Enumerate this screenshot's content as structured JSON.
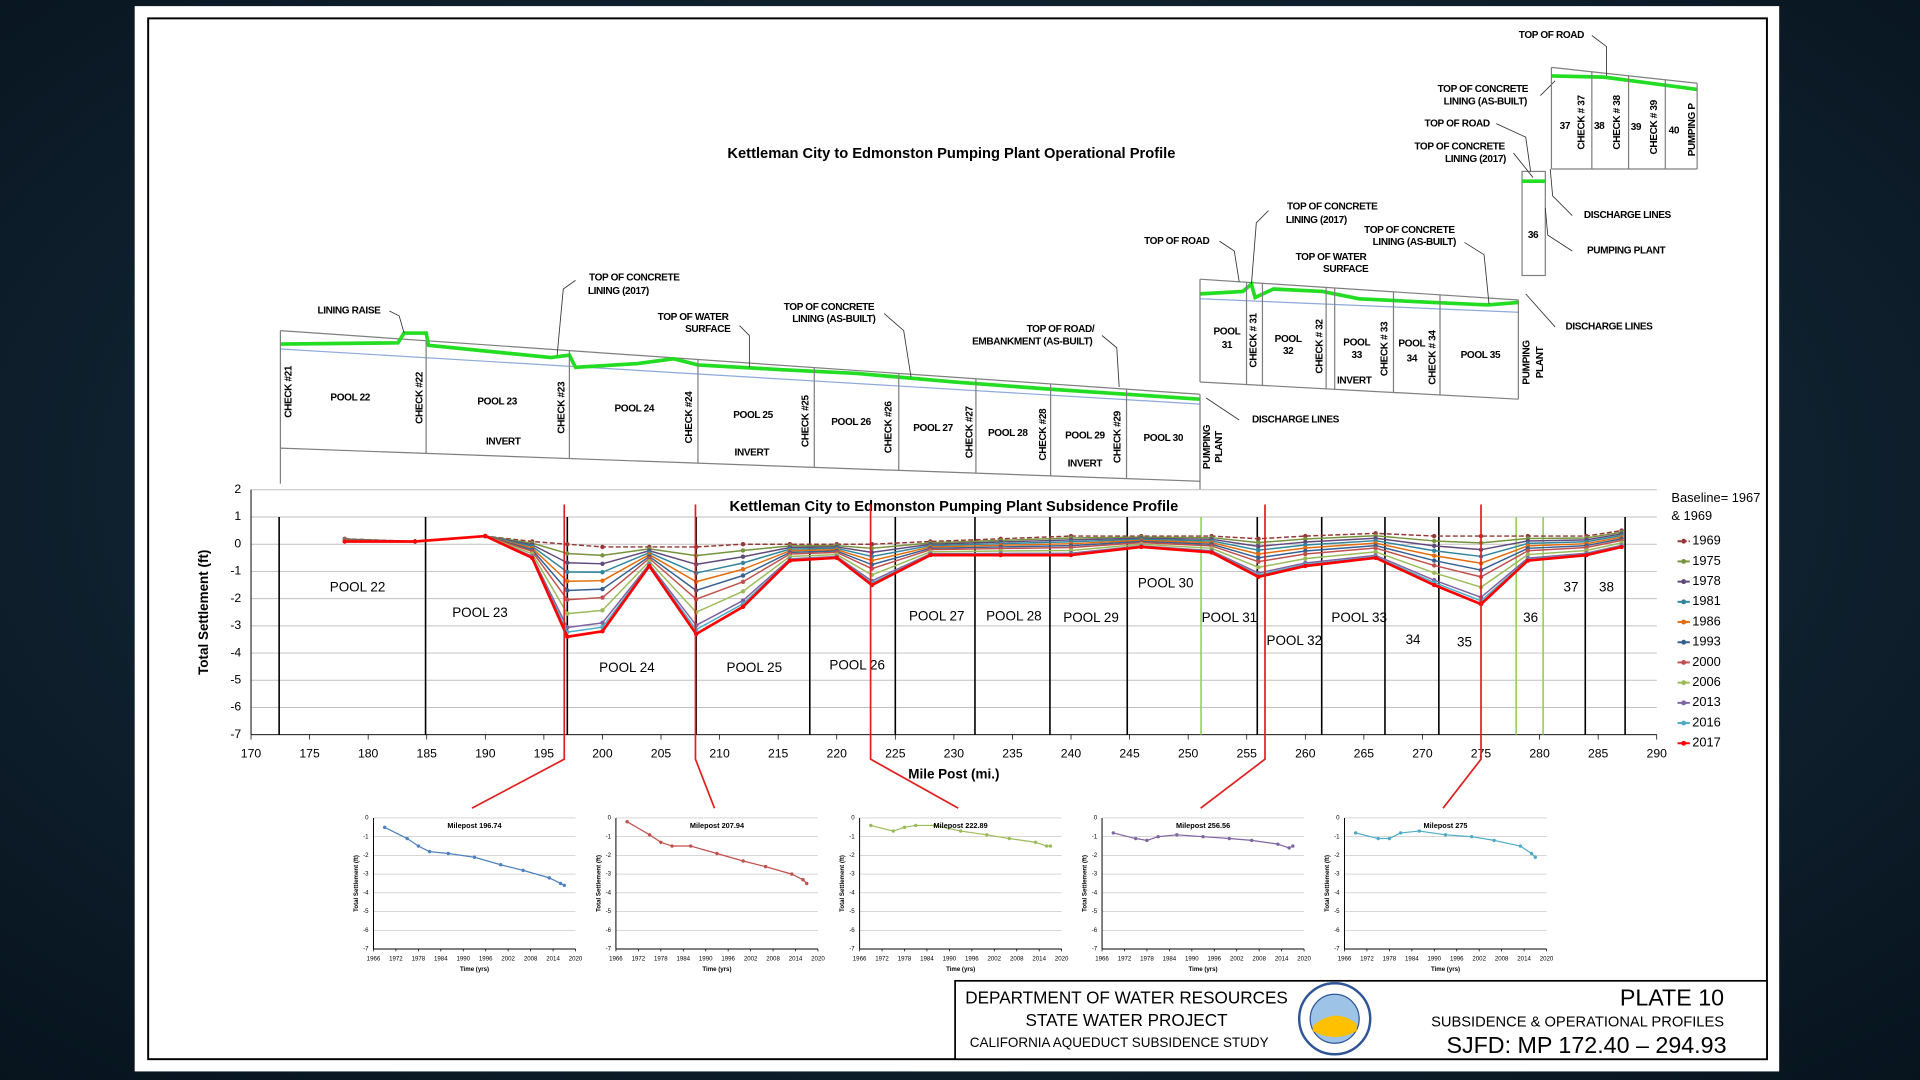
{
  "profile": {
    "title": "Kettleman City to Edmonston Pumping Plant Operational Profile",
    "labels": [
      "LINING RAISE",
      "TOP OF CONCRETE",
      "LINING (2017)",
      "TOP OF WATER",
      "SURFACE",
      "TOP OF CONCRETE",
      "LINING (AS-BUILT)",
      "TOP OF ROAD/",
      "EMBANKMENT (AS-BUILT)",
      "CHECK #21",
      "POOL 22",
      "CHECK #22",
      "POOL 23",
      "INVERT",
      "CHECK #23",
      "POOL 24",
      "CHECK #24",
      "POOL 25",
      "INVERT",
      "CHECK #25",
      "POOL 26",
      "CHECK #26",
      "POOL 27",
      "CHECK #27",
      "POOL 28",
      "CHECK #28",
      "POOL 29",
      "INVERT",
      "CHECK #29",
      "POOL 30",
      "PUMPING",
      "PLANT",
      "DISCHARGE LINES",
      "TOP OF ROAD",
      "TOP OF CONCRETE",
      "LINING (2017)",
      "TOP OF CONCRETE",
      "LINING (AS-BUILT)",
      "TOP OF WATER",
      "SURFACE",
      "POOL",
      "31",
      "CHECK # 31",
      "POOL",
      "32",
      "CHECK # 32",
      "POOL",
      "33",
      "INVERT",
      "CHECK # 33",
      "POOL",
      "34",
      "CHECK # 34",
      "POOL 35",
      "PUMPING",
      "PLANT",
      "DISCHARGE LINES",
      "36",
      "PUMPING PLANT",
      "DISCHARGE LINES",
      "TOP OF CONCRETE",
      "LINING (2017)",
      "TOP OF ROAD",
      "TOP OF CONCRETE",
      "LINING (AS-BUILT)",
      "TOP OF ROAD",
      "37",
      "CHECK # 37",
      "38",
      "CHECK # 38",
      "39",
      "CHECK # 39",
      "40",
      "PUMPING P"
    ]
  },
  "chart_data": [
    {
      "type": "line",
      "title": "Kettleman City to Edmonston Pumping Plant Subsidence Profile",
      "y_label": "Total Settlement (ft)",
      "x_label": "Mile Post (mi.)",
      "legend_title": [
        "Baseline= 1967",
        "& 1969"
      ],
      "legend": "right",
      "grid": true,
      "xlim": [
        170,
        290
      ],
      "xticks": [
        170,
        175,
        180,
        185,
        190,
        195,
        200,
        205,
        210,
        215,
        220,
        225,
        230,
        235,
        240,
        245,
        250,
        255,
        260,
        265,
        270,
        275,
        280,
        285,
        290
      ],
      "ylim": [
        -7,
        2
      ],
      "yticks": [
        2,
        1,
        0,
        -1,
        -2,
        -3,
        -4,
        -5,
        -6,
        -7
      ],
      "x": [
        178,
        184,
        190,
        194,
        197,
        200,
        204,
        208,
        212,
        216,
        220,
        223,
        228,
        234,
        240,
        246,
        252,
        256,
        260,
        266,
        271,
        275,
        279,
        284,
        287
      ],
      "series": [
        {
          "name": "1969",
          "color": "#953735",
          "dash": true,
          "values": [
            0.2,
            0.1,
            0.3,
            0.1,
            0.0,
            -0.1,
            -0.1,
            -0.1,
            0.0,
            0.0,
            0.0,
            0.0,
            0.1,
            0.2,
            0.3,
            0.3,
            0.3,
            0.2,
            0.3,
            0.4,
            0.3,
            0.3,
            0.3,
            0.3,
            0.5
          ]
        },
        {
          "name": "1975",
          "color": "#77933c",
          "values": [
            0.19,
            0.1,
            0.3,
            0.04,
            -0.34,
            -0.41,
            -0.17,
            -0.42,
            -0.23,
            -0.06,
            -0.05,
            -0.15,
            0.05,
            0.14,
            0.23,
            0.26,
            0.24,
            0.06,
            0.19,
            0.31,
            0.12,
            0.05,
            0.21,
            0.23,
            0.44
          ]
        },
        {
          "name": "1978",
          "color": "#604a7b",
          "values": [
            0.18,
            0.1,
            0.3,
            -0.02,
            -0.68,
            -0.72,
            -0.24,
            -0.74,
            -0.46,
            -0.12,
            -0.1,
            -0.3,
            0.0,
            0.08,
            0.16,
            0.22,
            0.18,
            -0.08,
            0.08,
            0.22,
            -0.06,
            -0.2,
            0.12,
            0.16,
            0.38
          ]
        },
        {
          "name": "1981",
          "color": "#31859c",
          "values": [
            0.17,
            0.1,
            0.3,
            -0.08,
            -1.02,
            -1.03,
            -0.31,
            -1.06,
            -0.69,
            -0.18,
            -0.15,
            -0.45,
            -0.05,
            0.02,
            0.09,
            0.18,
            0.12,
            -0.22,
            -0.03,
            0.13,
            -0.24,
            -0.45,
            0.03,
            0.09,
            0.32
          ]
        },
        {
          "name": "1986",
          "color": "#e46c0a",
          "values": [
            0.16,
            0.1,
            0.3,
            -0.14,
            -1.36,
            -1.34,
            -0.38,
            -1.38,
            -0.92,
            -0.24,
            -0.2,
            -0.6,
            -0.1,
            -0.04,
            0.02,
            0.14,
            0.06,
            -0.36,
            -0.14,
            0.04,
            -0.42,
            -0.7,
            -0.06,
            0.02,
            0.26
          ]
        },
        {
          "name": "1993",
          "color": "#376092",
          "values": [
            0.15,
            0.1,
            0.3,
            -0.2,
            -1.7,
            -1.65,
            -0.45,
            -1.7,
            -1.15,
            -0.3,
            -0.25,
            -0.75,
            -0.15,
            -0.1,
            -0.05,
            0.1,
            0.0,
            -0.5,
            -0.25,
            -0.05,
            -0.6,
            -0.95,
            -0.15,
            -0.05,
            0.2
          ]
        },
        {
          "name": "2000",
          "color": "#c0504d",
          "values": [
            0.14,
            0.1,
            0.3,
            -0.26,
            -2.04,
            -1.96,
            -0.52,
            -2.02,
            -1.38,
            -0.36,
            -0.3,
            -0.9,
            -0.2,
            -0.16,
            -0.12,
            0.06,
            -0.06,
            -0.64,
            -0.36,
            -0.14,
            -0.78,
            -1.2,
            -0.24,
            -0.12,
            0.14
          ]
        },
        {
          "name": "2006",
          "color": "#9bbb59",
          "values": [
            0.13,
            0.1,
            0.3,
            -0.35,
            -2.55,
            -2.43,
            -0.63,
            -2.5,
            -1.73,
            -0.45,
            -0.38,
            -1.13,
            -0.28,
            -0.25,
            -0.23,
            0.0,
            -0.15,
            -0.85,
            -0.53,
            -0.28,
            -1.05,
            -1.58,
            -0.38,
            -0.23,
            0.05
          ]
        },
        {
          "name": "2013",
          "color": "#8064a2",
          "values": [
            0.11,
            0.1,
            0.3,
            -0.44,
            -3.06,
            -2.89,
            -0.73,
            -2.98,
            -2.07,
            -0.54,
            -0.45,
            -1.35,
            -0.35,
            -0.34,
            -0.33,
            -0.06,
            -0.24,
            -1.06,
            -0.69,
            -0.41,
            -1.32,
            -1.95,
            -0.51,
            -0.33,
            -0.04
          ]
        },
        {
          "name": "2016",
          "color": "#4bacc6",
          "values": [
            0.11,
            0.1,
            0.3,
            -0.47,
            -3.23,
            -3.05,
            -0.77,
            -3.14,
            -2.19,
            -0.57,
            -0.48,
            -1.43,
            -0.38,
            -0.37,
            -0.37,
            -0.08,
            -0.27,
            -1.13,
            -0.75,
            -0.46,
            -1.41,
            -2.08,
            -0.56,
            -0.37,
            -0.07
          ]
        },
        {
          "name": "2017",
          "color": "#ff0000",
          "width": 2.2,
          "values": [
            0.1,
            0.1,
            0.3,
            -0.5,
            -3.4,
            -3.2,
            -0.8,
            -3.3,
            -2.3,
            -0.6,
            -0.5,
            -1.5,
            -0.4,
            -0.4,
            -0.4,
            -0.1,
            -0.3,
            -1.2,
            -0.8,
            -0.5,
            -1.5,
            -2.2,
            -0.6,
            -0.4,
            -0.1
          ]
        }
      ],
      "annotations": [
        "POOL 22",
        "POOL 23",
        "POOL 24",
        "POOL 25",
        "POOL 26",
        "POOL 27",
        "POOL 28",
        "POOL 29",
        "POOL 30",
        "POOL 31",
        "POOL 32",
        "POOL 33",
        "34",
        "35",
        "36",
        "37",
        "38"
      ],
      "vlines": [
        172.4,
        184.9,
        197.0,
        208.0,
        217.7,
        225.0,
        231.8,
        238.2,
        244.8,
        251.1,
        255.9,
        261.4,
        266.8,
        271.4,
        278.0,
        280.3,
        283.9,
        287.3
      ],
      "vline_colors": [
        "#000",
        "#000",
        "#000",
        "#000",
        "#000",
        "#000",
        "#000",
        "#000",
        "#000",
        "#92d050",
        "#000",
        "#000",
        "#000",
        "#000",
        "#92d050",
        "#92d050",
        "#000",
        "#000"
      ]
    },
    {
      "type": "line",
      "title": "Milepost 196.74",
      "milepost": 196.74,
      "color": "#4f81bd",
      "y_label": "Total Settlement (ft)",
      "x_label": "Time (yrs)",
      "xlim": [
        1966,
        2020
      ],
      "xticks": [
        1966,
        1972,
        1978,
        1984,
        1990,
        1996,
        2002,
        2008,
        2014,
        2020
      ],
      "ylim": [
        -7,
        0
      ],
      "yticks": [
        0,
        -1,
        -2,
        -3,
        -4,
        -5,
        -6,
        -7
      ],
      "grid": true,
      "x": [
        1969,
        1975,
        1978,
        1981,
        1986,
        1993,
        2000,
        2006,
        2013,
        2016,
        2017
      ],
      "values": [
        -0.5,
        -1.1,
        -1.5,
        -1.8,
        -1.9,
        -2.1,
        -2.5,
        -2.8,
        -3.2,
        -3.5,
        -3.6
      ]
    },
    {
      "type": "line",
      "title": "Milepost 207.94",
      "milepost": 207.94,
      "color": "#c0504d",
      "y_label": "Total Settlement (ft)",
      "x_label": "Time (yrs)",
      "xlim": [
        1966,
        2020
      ],
      "xticks": [
        1966,
        1972,
        1978,
        1984,
        1990,
        1996,
        2002,
        2008,
        2014,
        2020
      ],
      "ylim": [
        -7,
        0
      ],
      "yticks": [
        0,
        -1,
        -2,
        -3,
        -4,
        -5,
        -6,
        -7
      ],
      "grid": true,
      "x": [
        1969,
        1975,
        1978,
        1981,
        1986,
        1993,
        2000,
        2006,
        2013,
        2016,
        2017
      ],
      "values": [
        -0.2,
        -0.9,
        -1.3,
        -1.5,
        -1.5,
        -1.9,
        -2.3,
        -2.6,
        -3.0,
        -3.3,
        -3.5
      ]
    },
    {
      "type": "line",
      "title": "Milepost 222.89",
      "milepost": 222.89,
      "color": "#9bbb59",
      "y_label": "Total Settlement (ft)",
      "x_label": "Time (yrs)",
      "xlim": [
        1966,
        2020
      ],
      "xticks": [
        1966,
        1972,
        1978,
        1984,
        1990,
        1996,
        2002,
        2008,
        2014,
        2020
      ],
      "ylim": [
        -7,
        0
      ],
      "yticks": [
        0,
        -1,
        -2,
        -3,
        -4,
        -5,
        -6,
        -7
      ],
      "grid": true,
      "x": [
        1969,
        1975,
        1978,
        1981,
        1986,
        1993,
        2000,
        2006,
        2013,
        2016,
        2017
      ],
      "values": [
        -0.4,
        -0.7,
        -0.5,
        -0.4,
        -0.4,
        -0.7,
        -0.9,
        -1.1,
        -1.3,
        -1.5,
        -1.5
      ]
    },
    {
      "type": "line",
      "title": "Milepost 256.56",
      "milepost": 256.56,
      "color": "#8064a2",
      "y_label": "Total Settlement (ft)",
      "x_label": "Time (yrs)",
      "xlim": [
        1966,
        2020
      ],
      "xticks": [
        1966,
        1972,
        1978,
        1984,
        1990,
        1996,
        2002,
        2008,
        2014,
        2020
      ],
      "ylim": [
        -7,
        0
      ],
      "yticks": [
        0,
        -1,
        -2,
        -3,
        -4,
        -5,
        -6,
        -7
      ],
      "grid": true,
      "x": [
        1969,
        1975,
        1978,
        1981,
        1986,
        1993,
        2000,
        2006,
        2013,
        2016,
        2017
      ],
      "values": [
        -0.8,
        -1.1,
        -1.2,
        -1.0,
        -0.9,
        -1.0,
        -1.1,
        -1.2,
        -1.4,
        -1.6,
        -1.5
      ]
    },
    {
      "type": "line",
      "title": "Milepost 275",
      "milepost": 275,
      "color": "#4bacc6",
      "y_label": "Total Settlement (ft)",
      "x_label": "Time (yrs)",
      "xlim": [
        1966,
        2020
      ],
      "xticks": [
        1966,
        1972,
        1978,
        1984,
        1990,
        1996,
        2002,
        2008,
        2014,
        2020
      ],
      "ylim": [
        -7,
        0
      ],
      "yticks": [
        0,
        -1,
        -2,
        -3,
        -4,
        -5,
        -6,
        -7
      ],
      "grid": true,
      "x": [
        1969,
        1975,
        1978,
        1981,
        1986,
        1993,
        2000,
        2006,
        2013,
        2016,
        2017
      ],
      "values": [
        -0.8,
        -1.1,
        -1.1,
        -0.8,
        -0.7,
        -0.9,
        -1.0,
        -1.2,
        -1.5,
        -1.9,
        -2.1
      ]
    }
  ],
  "title_block": {
    "left": [
      "DEPARTMENT OF WATER RESOURCES",
      "STATE WATER PROJECT",
      "CALIFORNIA AQUEDUCT SUBSIDENCE STUDY"
    ],
    "right": [
      "PLATE 10",
      "SUBSIDENCE & OPERATIONAL PROFILES",
      "SJFD: MP 172.40 – 294.93"
    ]
  }
}
